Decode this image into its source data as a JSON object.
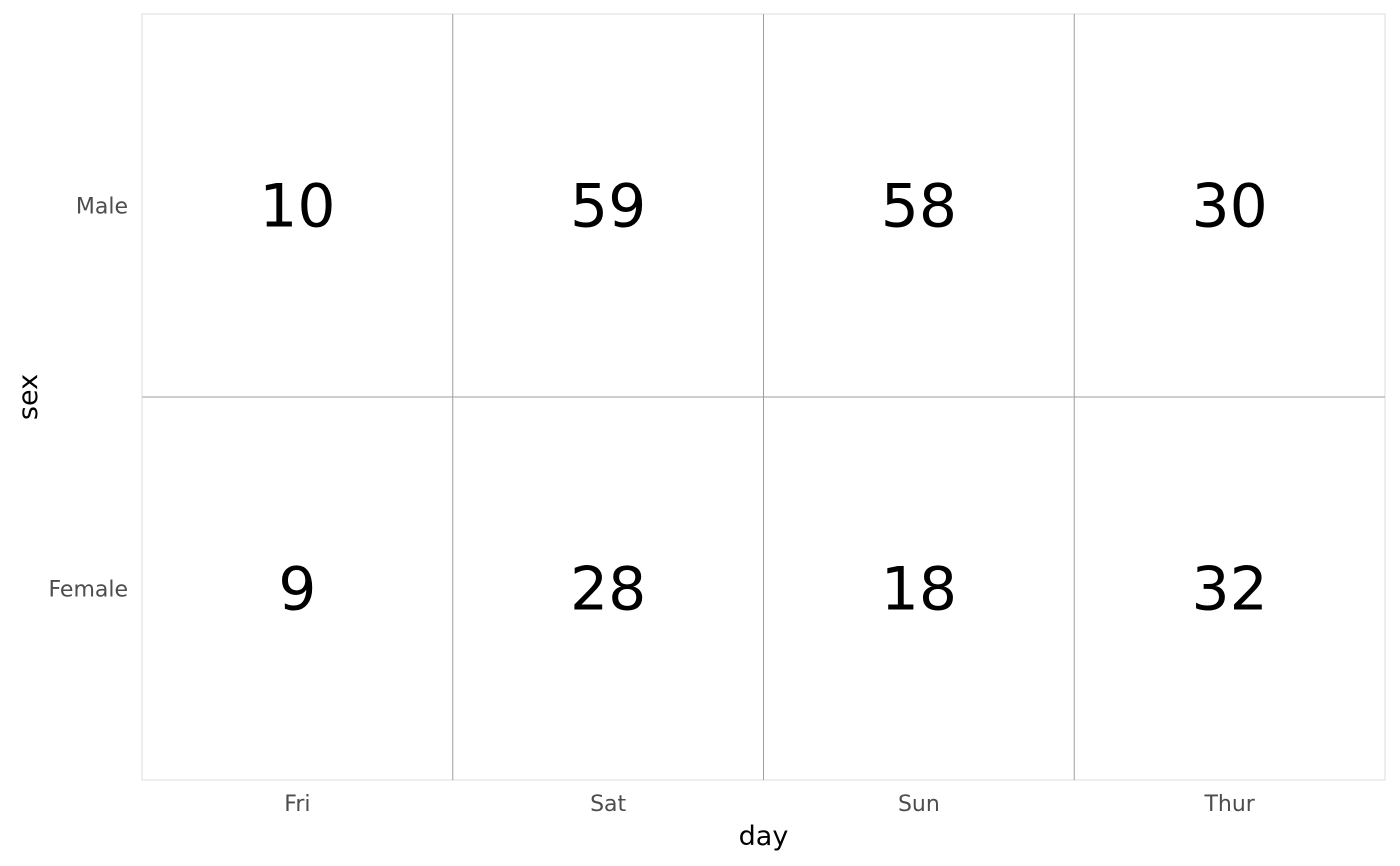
{
  "chart_data": {
    "type": "table",
    "x_categories": [
      "Fri",
      "Sat",
      "Sun",
      "Thur"
    ],
    "y_categories": [
      "Male",
      "Female"
    ],
    "values": [
      [
        10,
        59,
        58,
        30
      ],
      [
        9,
        28,
        18,
        32
      ]
    ],
    "xlabel": "day",
    "ylabel": "sex",
    "grid": true,
    "colors": {
      "cell_text": "#000000",
      "tick_label": "#4d4d4d",
      "grid_line": "#9e9e9e",
      "panel_border": "#dedede"
    }
  }
}
